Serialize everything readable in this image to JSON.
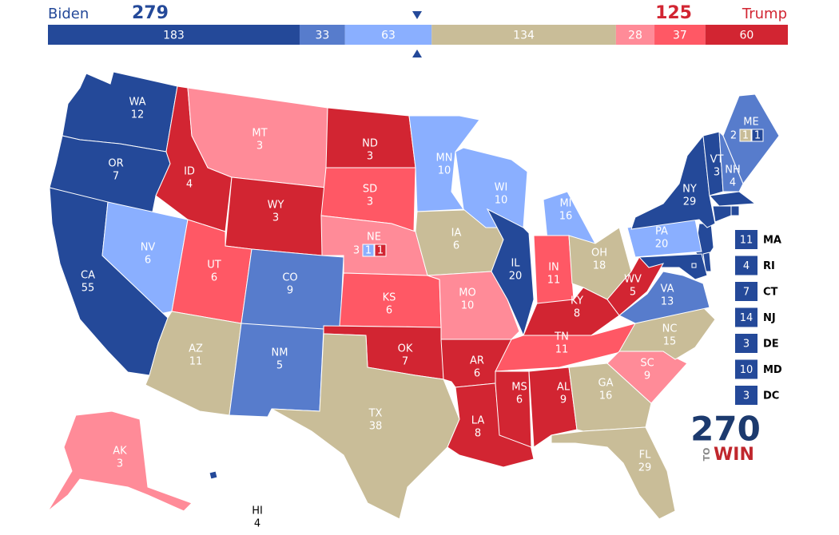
{
  "header": {
    "left_name": "Biden",
    "left_total": 279,
    "right_name": "Trump",
    "right_total": 125
  },
  "bar": [
    {
      "value": 183,
      "color": "#244999"
    },
    {
      "value": 33,
      "color": "#577ccc"
    },
    {
      "value": 63,
      "color": "#8aafff"
    },
    {
      "value": 134,
      "color": "#c9bd98"
    },
    {
      "value": 28,
      "color": "#ff8b98"
    },
    {
      "value": 37,
      "color": "#ff5865"
    },
    {
      "value": 60,
      "color": "#d22532"
    }
  ],
  "states": [
    {
      "abbr": "WA",
      "ev": 12,
      "color": "#244999"
    },
    {
      "abbr": "OR",
      "ev": 7,
      "color": "#244999"
    },
    {
      "abbr": "CA",
      "ev": 55,
      "color": "#244999"
    },
    {
      "abbr": "NV",
      "ev": 6,
      "color": "#8aafff"
    },
    {
      "abbr": "ID",
      "ev": 4,
      "color": "#d22532"
    },
    {
      "abbr": "MT",
      "ev": 3,
      "color": "#ff8b98"
    },
    {
      "abbr": "WY",
      "ev": 3,
      "color": "#d22532"
    },
    {
      "abbr": "UT",
      "ev": 6,
      "color": "#ff5865"
    },
    {
      "abbr": "AZ",
      "ev": 11,
      "color": "#c9bd98"
    },
    {
      "abbr": "CO",
      "ev": 9,
      "color": "#577ccc"
    },
    {
      "abbr": "NM",
      "ev": 5,
      "color": "#577ccc"
    },
    {
      "abbr": "ND",
      "ev": 3,
      "color": "#d22532"
    },
    {
      "abbr": "SD",
      "ev": 3,
      "color": "#ff5865"
    },
    {
      "abbr": "NE",
      "color": "#ff8b98",
      "splits": [
        {
          "ev": 3
        },
        {
          "ev": 1,
          "color": "#8aafff"
        },
        {
          "ev": 1,
          "color": "#d22532"
        }
      ]
    },
    {
      "abbr": "KS",
      "ev": 6,
      "color": "#ff5865"
    },
    {
      "abbr": "OK",
      "ev": 7,
      "color": "#d22532"
    },
    {
      "abbr": "TX",
      "ev": 38,
      "color": "#c9bd98"
    },
    {
      "abbr": "MN",
      "ev": 10,
      "color": "#8aafff"
    },
    {
      "abbr": "IA",
      "ev": 6,
      "color": "#c9bd98"
    },
    {
      "abbr": "MO",
      "ev": 10,
      "color": "#ff8b98"
    },
    {
      "abbr": "AR",
      "ev": 6,
      "color": "#d22532"
    },
    {
      "abbr": "LA",
      "ev": 8,
      "color": "#d22532"
    },
    {
      "abbr": "WI",
      "ev": 10,
      "color": "#8aafff"
    },
    {
      "abbr": "IL",
      "ev": 20,
      "color": "#244999"
    },
    {
      "abbr": "MI",
      "ev": 16,
      "color": "#8aafff"
    },
    {
      "abbr": "IN",
      "ev": 11,
      "color": "#ff5865"
    },
    {
      "abbr": "OH",
      "ev": 18,
      "color": "#c9bd98"
    },
    {
      "abbr": "KY",
      "ev": 8,
      "color": "#d22532"
    },
    {
      "abbr": "TN",
      "ev": 11,
      "color": "#ff5865"
    },
    {
      "abbr": "MS",
      "ev": 6,
      "color": "#d22532"
    },
    {
      "abbr": "AL",
      "ev": 9,
      "color": "#d22532"
    },
    {
      "abbr": "GA",
      "ev": 16,
      "color": "#c9bd98"
    },
    {
      "abbr": "FL",
      "ev": 29,
      "color": "#c9bd98"
    },
    {
      "abbr": "SC",
      "ev": 9,
      "color": "#ff8b98"
    },
    {
      "abbr": "NC",
      "ev": 15,
      "color": "#c9bd98"
    },
    {
      "abbr": "VA",
      "ev": 13,
      "color": "#577ccc"
    },
    {
      "abbr": "WV",
      "ev": 5,
      "color": "#d22532"
    },
    {
      "abbr": "PA",
      "ev": 20,
      "color": "#8aafff"
    },
    {
      "abbr": "NY",
      "ev": 29,
      "color": "#244999"
    },
    {
      "abbr": "VT",
      "ev": 3,
      "color": "#244999"
    },
    {
      "abbr": "NH",
      "ev": 4,
      "color": "#577ccc"
    },
    {
      "abbr": "ME",
      "color": "#577ccc",
      "splits": [
        {
          "ev": 2
        },
        {
          "ev": 1,
          "color": "#c9bd98"
        },
        {
          "ev": 1,
          "color": "#244999"
        }
      ]
    },
    {
      "abbr": "AK",
      "ev": 3,
      "color": "#ff8b98"
    },
    {
      "abbr": "HI",
      "ev": 4,
      "color": "#244999"
    }
  ],
  "small_states": [
    {
      "abbr": "MA",
      "ev": 11,
      "color": "#244999"
    },
    {
      "abbr": "RI",
      "ev": 4,
      "color": "#244999"
    },
    {
      "abbr": "CT",
      "ev": 7,
      "color": "#244999"
    },
    {
      "abbr": "NJ",
      "ev": 14,
      "color": "#244999"
    },
    {
      "abbr": "DE",
      "ev": 3,
      "color": "#244999"
    },
    {
      "abbr": "MD",
      "ev": 10,
      "color": "#244999"
    },
    {
      "abbr": "DC",
      "ev": 3,
      "color": "#244999"
    }
  ],
  "logo": {
    "number": "270",
    "small": "TO",
    "word": "WIN"
  }
}
